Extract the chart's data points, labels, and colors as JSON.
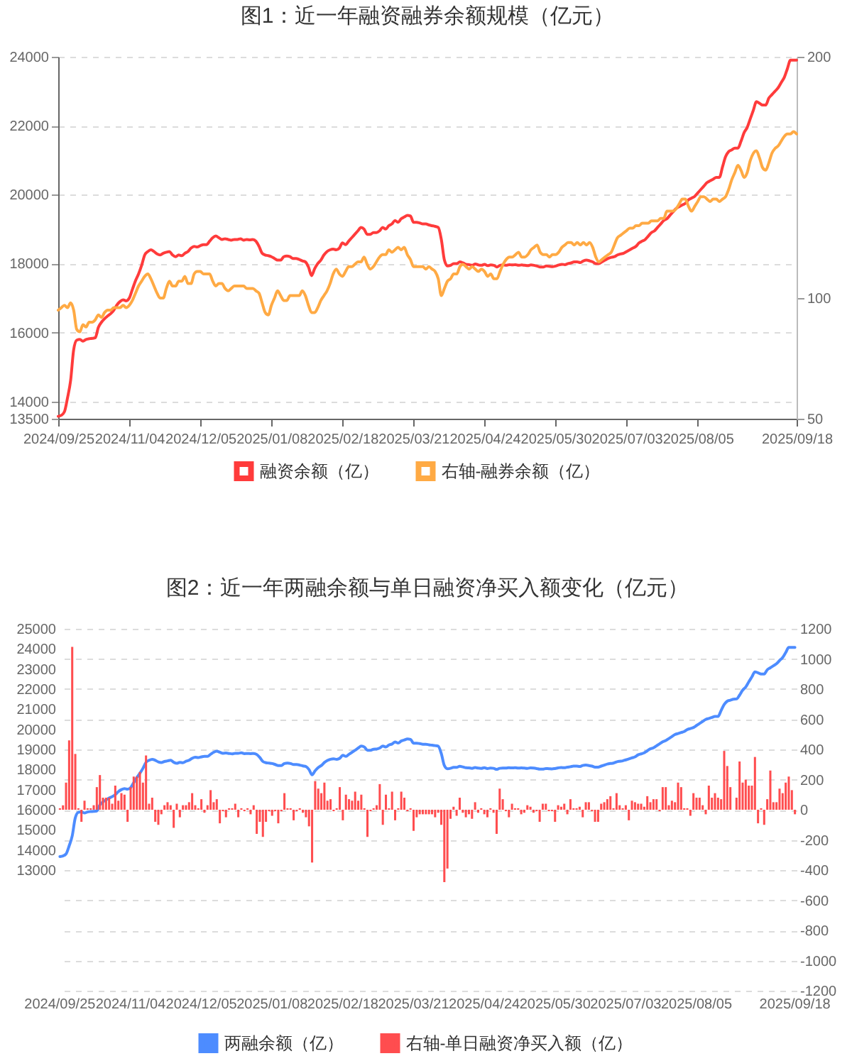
{
  "chart_data": [
    {
      "type": "line",
      "title": "图1：近一年融资融券余额规模（亿元）",
      "categories": [
        "2024/09/25",
        null,
        null,
        null,
        null,
        null,
        null,
        null,
        null,
        null,
        null,
        null,
        null,
        null,
        null,
        null,
        null,
        null,
        null,
        null,
        null,
        null,
        null,
        "2024/11/04",
        null,
        null,
        null,
        null,
        null,
        null,
        null,
        null,
        null,
        null,
        null,
        null,
        null,
        null,
        null,
        null,
        null,
        null,
        null,
        null,
        null,
        null,
        "2024/12/05",
        null,
        null,
        null,
        null,
        null,
        null,
        null,
        null,
        null,
        null,
        null,
        null,
        null,
        null,
        null,
        null,
        null,
        null,
        null,
        null,
        null,
        null,
        "2025/01/08",
        null,
        null,
        null,
        null,
        null,
        null,
        null,
        null,
        null,
        null,
        null,
        null,
        null,
        null,
        null,
        null,
        null,
        null,
        null,
        null,
        null,
        null,
        "2025/02/18",
        null,
        null,
        null,
        null,
        null,
        null,
        null,
        null,
        null,
        null,
        null,
        null,
        null,
        null,
        null,
        null,
        null,
        null,
        null,
        null,
        null,
        null,
        "2025/03/21",
        null,
        null,
        null,
        null,
        null,
        null,
        null,
        null,
        null,
        null,
        null,
        null,
        null,
        null,
        null,
        null,
        null,
        null,
        null,
        null,
        null,
        null,
        "2025/04/24",
        null,
        null,
        null,
        null,
        null,
        null,
        null,
        null,
        null,
        null,
        null,
        null,
        null,
        null,
        null,
        null,
        null,
        null,
        null,
        null,
        null,
        null,
        "2025/05/30",
        null,
        null,
        null,
        null,
        null,
        null,
        null,
        null,
        null,
        null,
        null,
        null,
        null,
        null,
        null,
        null,
        null,
        null,
        null,
        null,
        null,
        null,
        "2025/07/03",
        null,
        null,
        null,
        null,
        null,
        null,
        null,
        null,
        null,
        null,
        null,
        null,
        null,
        null,
        null,
        null,
        null,
        null,
        null,
        null,
        null,
        null,
        "2025/08/05",
        null,
        null,
        null,
        null,
        null,
        null,
        null,
        null,
        null,
        null,
        null,
        null,
        null,
        null,
        null,
        null,
        null,
        null,
        null,
        null,
        null,
        null,
        null,
        null,
        null,
        null,
        null,
        null,
        null,
        null,
        null,
        "2025/09/18"
      ],
      "ylim": [
        13500,
        24000
      ],
      "yticks": [
        13500,
        14000,
        16000,
        18000,
        20000,
        22000,
        24000
      ],
      "y2lim": [
        50,
        200
      ],
      "y2ticks": [
        50,
        100,
        200
      ],
      "grid": true,
      "legend": "bottom",
      "series": [
        {
          "name": "融资余额（亿）",
          "color": "#ff3b3b",
          "values": [
            13570,
            13600,
            13700,
            14100,
            14600,
            15500,
            15780,
            15800,
            15750,
            15800,
            15820,
            15830,
            15850,
            16150,
            16300,
            16400,
            16480,
            16550,
            16650,
            16800,
            16900,
            16950,
            16920,
            17000,
            17250,
            17500,
            17700,
            17950,
            18250,
            18350,
            18400,
            18350,
            18280,
            18250,
            18300,
            18330,
            18350,
            18250,
            18200,
            18250,
            18230,
            18300,
            18350,
            18450,
            18500,
            18480,
            18520,
            18550,
            18550,
            18650,
            18750,
            18800,
            18750,
            18700,
            18720,
            18700,
            18680,
            18700,
            18700,
            18720,
            18680,
            18700,
            18690,
            18700,
            18650,
            18500,
            18300,
            18250,
            18230,
            18200,
            18150,
            18100,
            18100,
            18200,
            18220,
            18200,
            18150,
            18150,
            18120,
            18080,
            18050,
            17900,
            17650,
            17850,
            18000,
            18100,
            18250,
            18350,
            18400,
            18420,
            18400,
            18450,
            18600,
            18550,
            18650,
            18750,
            18850,
            18950,
            19050,
            19000,
            18850,
            18850,
            18900,
            18900,
            18950,
            19050,
            19000,
            19100,
            19150,
            19250,
            19200,
            19300,
            19350,
            19400,
            19380,
            19200,
            19200,
            19180,
            19150,
            19150,
            19120,
            19100,
            19080,
            19050,
            18700,
            18100,
            17930,
            17950,
            18000,
            18000,
            18050,
            18020,
            17980,
            17970,
            17950,
            17990,
            17960,
            17950,
            17980,
            17940,
            17960,
            17950,
            17900,
            17950,
            17960,
            17950,
            17970,
            17960,
            17970,
            17950,
            17960,
            17950,
            17940,
            17960,
            17950,
            17930,
            17900,
            17900,
            17930,
            17920,
            17910,
            17930,
            17960,
            17980,
            17970,
            18000,
            18020,
            18050,
            18050,
            18030,
            18080,
            18100,
            18080,
            18050,
            18000,
            18000,
            18050,
            18100,
            18150,
            18180,
            18200,
            18250,
            18280,
            18300,
            18350,
            18400,
            18450,
            18500,
            18600,
            18650,
            18700,
            18800,
            18900,
            18950,
            19050,
            19150,
            19250,
            19300,
            19400,
            19500,
            19600,
            19650,
            19700,
            19750,
            19850,
            19900,
            19950,
            20050,
            20150,
            20250,
            20350,
            20400,
            20450,
            20500,
            20500,
            20800,
            21100,
            21250,
            21300,
            21350,
            21350,
            21550,
            21800,
            21950,
            22200,
            22450,
            22700,
            22650,
            22600,
            22600,
            22800,
            22900,
            23000,
            23100,
            23250,
            23400,
            23650,
            23900,
            23900,
            23900
          ]
        },
        {
          "name": "右轴-融券余额（亿）",
          "color": "#ffaa44",
          "axis": "y2",
          "values": [
            95,
            96,
            97,
            96,
            98,
            95,
            87,
            86,
            89,
            88,
            90,
            90,
            91,
            93,
            92,
            94,
            95,
            95,
            96,
            96,
            96,
            97,
            96,
            97,
            99,
            102,
            105,
            107,
            109,
            110,
            108,
            105,
            102,
            100,
            100,
            104,
            107,
            105,
            105,
            107,
            107,
            109,
            106,
            106,
            110,
            111,
            111,
            110,
            110,
            110,
            107,
            105,
            106,
            106,
            104,
            103,
            104,
            105,
            105,
            105,
            105,
            104,
            104,
            104,
            103,
            102,
            98,
            94,
            93,
            97,
            100,
            103,
            101,
            99,
            99,
            101,
            101,
            101,
            101,
            103,
            101,
            97,
            94,
            94,
            96,
            99,
            101,
            103,
            106,
            110,
            112,
            110,
            109,
            111,
            113,
            113,
            114,
            115,
            115,
            117,
            114,
            112,
            113,
            115,
            117,
            118,
            118,
            120,
            119,
            120,
            121,
            120,
            121,
            118,
            116,
            113,
            113,
            113,
            113,
            112,
            113,
            112,
            111,
            108,
            101,
            104,
            107,
            108,
            110,
            110,
            113,
            114,
            113,
            112,
            113,
            112,
            111,
            112,
            111,
            109,
            110,
            108,
            108,
            111,
            114,
            116,
            117,
            117,
            118,
            119,
            117,
            117,
            118,
            120,
            121,
            122,
            119,
            118,
            118,
            117,
            118,
            118,
            119,
            121,
            122,
            123,
            123,
            122,
            123,
            122,
            123,
            122,
            123,
            121,
            117,
            115,
            116,
            117,
            118,
            119,
            122,
            125,
            126,
            127,
            128,
            129,
            129,
            130,
            130,
            131,
            131,
            131,
            132,
            132,
            132,
            133,
            133,
            136,
            136,
            136,
            137,
            139,
            141,
            141,
            138,
            136,
            138,
            140,
            142,
            142,
            141,
            140,
            141,
            141,
            140,
            141,
            142,
            145,
            149,
            152,
            155,
            153,
            150,
            152,
            157,
            160,
            161,
            158,
            154,
            153,
            156,
            160,
            162,
            163,
            165,
            167,
            168,
            168,
            169,
            168
          ]
        }
      ]
    },
    {
      "type": "bar",
      "title": "图2：近一年两融余额与单日融资净买入额变化（亿元）",
      "categories": [
        "2024/09/25",
        null,
        null,
        null,
        null,
        null,
        null,
        null,
        null,
        null,
        null,
        null,
        null,
        null,
        null,
        null,
        null,
        null,
        null,
        null,
        null,
        null,
        null,
        "2024/11/04",
        null,
        null,
        null,
        null,
        null,
        null,
        null,
        null,
        null,
        null,
        null,
        null,
        null,
        null,
        null,
        null,
        null,
        null,
        null,
        null,
        null,
        null,
        "2024/12/05",
        null,
        null,
        null,
        null,
        null,
        null,
        null,
        null,
        null,
        null,
        null,
        null,
        null,
        null,
        null,
        null,
        null,
        null,
        null,
        null,
        null,
        null,
        "2025/01/08",
        null,
        null,
        null,
        null,
        null,
        null,
        null,
        null,
        null,
        null,
        null,
        null,
        null,
        null,
        null,
        null,
        null,
        null,
        null,
        null,
        null,
        null,
        "2025/02/18",
        null,
        null,
        null,
        null,
        null,
        null,
        null,
        null,
        null,
        null,
        null,
        null,
        null,
        null,
        null,
        null,
        null,
        null,
        null,
        null,
        null,
        null,
        "2025/03/21",
        null,
        null,
        null,
        null,
        null,
        null,
        null,
        null,
        null,
        null,
        null,
        null,
        null,
        null,
        null,
        null,
        null,
        null,
        null,
        null,
        null,
        null,
        "2025/04/24",
        null,
        null,
        null,
        null,
        null,
        null,
        null,
        null,
        null,
        null,
        null,
        null,
        null,
        null,
        null,
        null,
        null,
        null,
        null,
        null,
        null,
        null,
        "2025/05/30",
        null,
        null,
        null,
        null,
        null,
        null,
        null,
        null,
        null,
        null,
        null,
        null,
        null,
        null,
        null,
        null,
        null,
        null,
        null,
        null,
        null,
        null,
        "2025/07/03",
        null,
        null,
        null,
        null,
        null,
        null,
        null,
        null,
        null,
        null,
        null,
        null,
        null,
        null,
        null,
        null,
        null,
        null,
        null,
        null,
        null,
        null,
        "2025/08/05",
        null,
        null,
        null,
        null,
        null,
        null,
        null,
        null,
        null,
        null,
        null,
        null,
        null,
        null,
        null,
        null,
        null,
        null,
        null,
        null,
        null,
        null,
        null,
        null,
        null,
        null,
        null,
        null,
        null,
        null,
        null,
        "2025/09/18"
      ],
      "ylim": [
        7000,
        25000
      ],
      "yticks": [
        13000,
        14000,
        15000,
        16000,
        17000,
        18000,
        19000,
        20000,
        21000,
        22000,
        23000,
        24000,
        25000
      ],
      "y2lim": [
        -1200,
        1200
      ],
      "y2ticks": [
        -1200,
        -1000,
        -800,
        -600,
        -400,
        -200,
        0,
        200,
        400,
        600,
        800,
        1000,
        1200
      ],
      "grid": true,
      "legend": "bottom",
      "series": [
        {
          "name": "两融余额（亿）",
          "color": "#4d8cff",
          "type": "line",
          "values": [
            13670,
            13700,
            13800,
            14200,
            14700,
            15600,
            15870,
            15890,
            15840,
            15890,
            15910,
            15920,
            15940,
            16240,
            16390,
            16490,
            16580,
            16650,
            16750,
            16900,
            17000,
            17050,
            17020,
            17100,
            17350,
            17600,
            17810,
            18060,
            18360,
            18460,
            18510,
            18460,
            18380,
            18350,
            18400,
            18430,
            18460,
            18360,
            18310,
            18360,
            18340,
            18410,
            18460,
            18560,
            18610,
            18590,
            18630,
            18660,
            18660,
            18760,
            18860,
            18910,
            18860,
            18810,
            18820,
            18800,
            18780,
            18810,
            18810,
            18830,
            18790,
            18800,
            18790,
            18800,
            18750,
            18600,
            18400,
            18340,
            18320,
            18300,
            18250,
            18200,
            18200,
            18300,
            18320,
            18300,
            18250,
            18250,
            18220,
            18180,
            18150,
            18000,
            17740,
            17940,
            18100,
            18200,
            18350,
            18450,
            18510,
            18530,
            18510,
            18560,
            18710,
            18660,
            18760,
            18860,
            18960,
            19070,
            19170,
            19120,
            18960,
            18960,
            19010,
            19020,
            19070,
            19170,
            19120,
            19220,
            19270,
            19370,
            19320,
            19420,
            19470,
            19520,
            19500,
            19310,
            19310,
            19290,
            19260,
            19260,
            19230,
            19210,
            19190,
            19160,
            18800,
            18200,
            18040,
            18060,
            18110,
            18110,
            18160,
            18130,
            18090,
            18080,
            18060,
            18100,
            18070,
            18060,
            18090,
            18050,
            18070,
            18060,
            18010,
            18060,
            18070,
            18070,
            18090,
            18080,
            18090,
            18070,
            18080,
            18070,
            18060,
            18080,
            18070,
            18050,
            18020,
            18020,
            18050,
            18040,
            18030,
            18050,
            18080,
            18100,
            18090,
            18120,
            18140,
            18170,
            18170,
            18150,
            18200,
            18220,
            18200,
            18170,
            18120,
            18120,
            18170,
            18220,
            18270,
            18300,
            18320,
            18380,
            18410,
            18430,
            18480,
            18530,
            18580,
            18630,
            18730,
            18780,
            18830,
            18930,
            19030,
            19080,
            19180,
            19280,
            19380,
            19440,
            19540,
            19640,
            19740,
            19790,
            19840,
            19890,
            19990,
            20040,
            20090,
            20190,
            20290,
            20390,
            20490,
            20540,
            20590,
            20640,
            20640,
            20940,
            21240,
            21400,
            21450,
            21500,
            21510,
            21700,
            21950,
            22100,
            22360,
            22610,
            22860,
            22810,
            22750,
            22750,
            22960,
            23060,
            23160,
            23260,
            23420,
            23570,
            23820,
            24070,
            24070,
            24070
          ]
        },
        {
          "name": "右轴-单日融资净买入额（亿）",
          "color": "#ff4d4f",
          "axis": "y2",
          "values": [
            10,
            30,
            180,
            460,
            1080,
            370,
            10,
            -80,
            60,
            10,
            10,
            30,
            150,
            230,
            80,
            80,
            80,
            40,
            160,
            60,
            110,
            100,
            -80,
            150,
            220,
            220,
            250,
            180,
            360,
            40,
            80,
            -80,
            -100,
            -30,
            30,
            50,
            30,
            -120,
            40,
            -50,
            30,
            30,
            50,
            110,
            30,
            10,
            70,
            -20,
            30,
            130,
            50,
            70,
            -90,
            -10,
            -50,
            10,
            10,
            40,
            -50,
            10,
            -10,
            10,
            -30,
            30,
            -160,
            -80,
            -180,
            -80,
            -10,
            -40,
            -10,
            -90,
            -10,
            110,
            10,
            10,
            -70,
            -10,
            10,
            -20,
            -50,
            -110,
            -350,
            190,
            140,
            110,
            180,
            60,
            70,
            -10,
            10,
            150,
            -70,
            100,
            70,
            60,
            120,
            60,
            100,
            10,
            -180,
            -10,
            10,
            30,
            170,
            -100,
            100,
            10,
            120,
            -70,
            10,
            120,
            80,
            -10,
            10,
            -140,
            -50,
            -30,
            -30,
            -30,
            -30,
            -30,
            -50,
            -20,
            -100,
            -480,
            -390,
            -60,
            20,
            -40,
            80,
            -20,
            -50,
            -30,
            -60,
            50,
            -20,
            10,
            -30,
            -50,
            10,
            -20,
            -160,
            140,
            70,
            -10,
            -50,
            40,
            10,
            10,
            -30,
            -20,
            30,
            20,
            -20,
            -10,
            -80,
            40,
            40,
            -10,
            -10,
            -80,
            30,
            20,
            40,
            -30,
            70,
            10,
            10,
            20,
            -50,
            50,
            50,
            -10,
            -80,
            -80,
            40,
            50,
            70,
            90,
            10,
            110,
            30,
            10,
            30,
            -70,
            60,
            50,
            40,
            40,
            20,
            90,
            50,
            70,
            70,
            -10,
            150,
            150,
            30,
            60,
            50,
            180,
            150,
            10,
            10,
            -40,
            110,
            80,
            80,
            30,
            -30,
            160,
            80,
            110,
            80,
            70,
            390,
            290,
            150,
            0,
            80,
            320,
            180,
            200,
            160,
            160,
            350,
            -90,
            10,
            -100,
            70,
            260,
            50,
            50,
            140,
            110,
            180,
            220,
            130,
            -30
          ]
        }
      ]
    }
  ]
}
